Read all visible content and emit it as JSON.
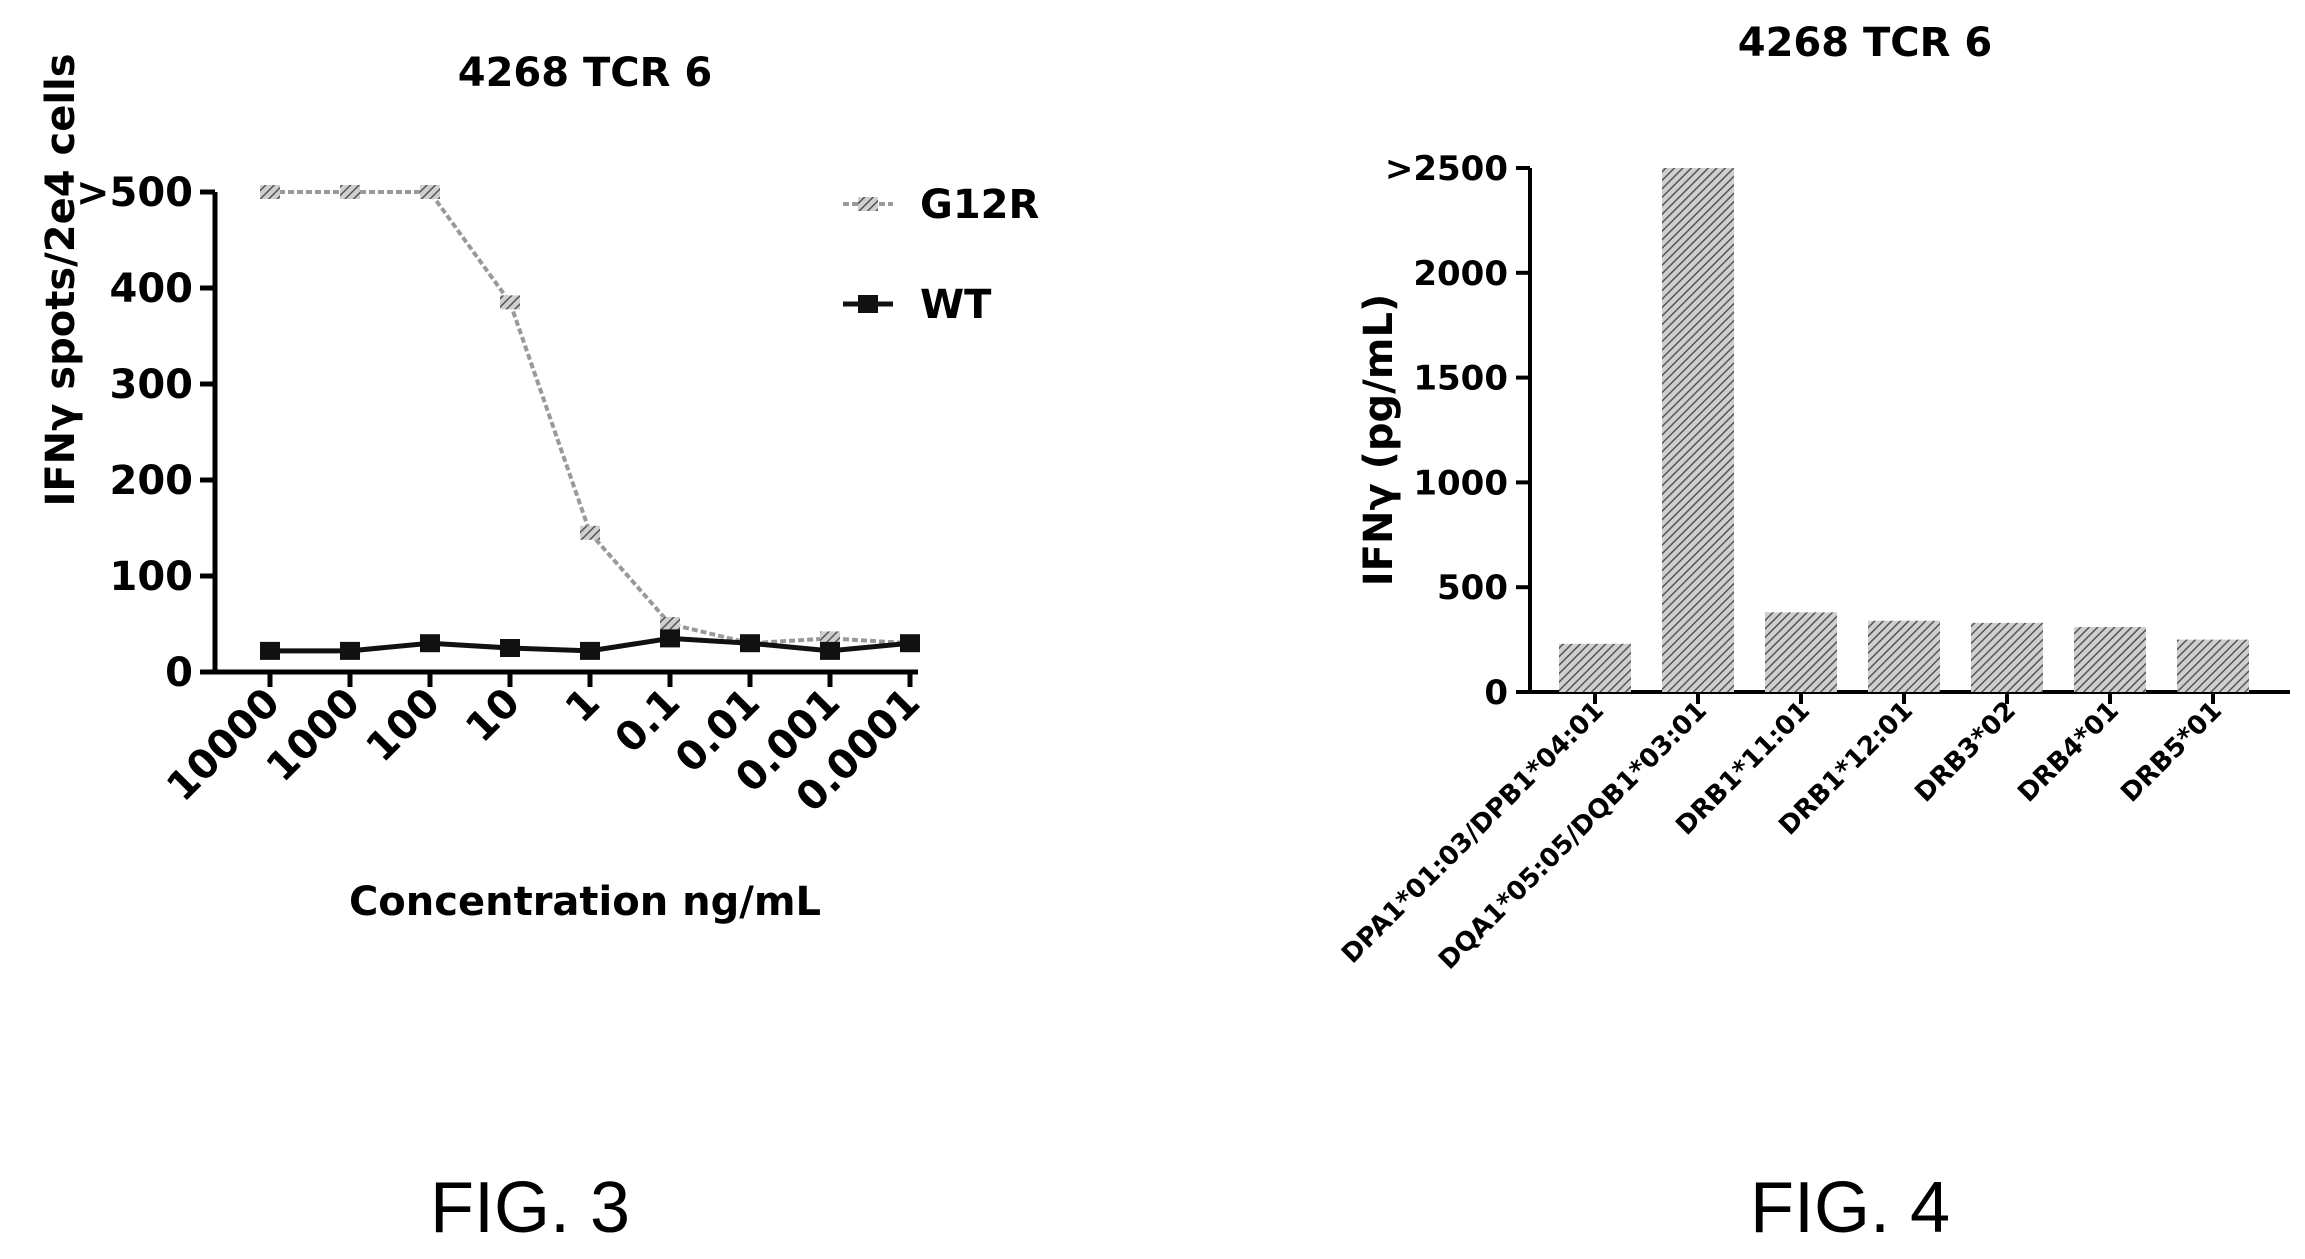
{
  "fig3": {
    "label": "FIG. 3",
    "chart_data": {
      "type": "line",
      "title": "4268 TCR 6",
      "xlabel": "Concentration ng/mL",
      "ylabel": "IFNγ spots/2e4 cells",
      "categories": [
        "10000",
        "1000",
        "100",
        "10",
        "1",
        "0.1",
        "0.01",
        "0.001",
        "0.0001"
      ],
      "yticks": [
        "0",
        "100",
        "200",
        "300",
        "400",
        ">500"
      ],
      "ylim": [
        0,
        500
      ],
      "series": [
        {
          "name": "G12R",
          "color": "#9a9a9a",
          "values": [
            500,
            500,
            500,
            385,
            145,
            50,
            30,
            35,
            30
          ]
        },
        {
          "name": "WT",
          "color": "#111111",
          "values": [
            22,
            22,
            30,
            25,
            22,
            35,
            30,
            22,
            30
          ]
        }
      ],
      "legend": "top-right"
    }
  },
  "fig4": {
    "label": "FIG. 4",
    "chart_data": {
      "type": "bar",
      "title": "4268 TCR 6",
      "xlabel": "",
      "ylabel": "IFNγ (pg/mL)",
      "categories": [
        "DPA1*01:03/DPB1*04:01",
        "DQA1*05:05/DQB1*03:01",
        "DRB1*11:01",
        "DRB1*12:01",
        "DRB3*02",
        "DRB4*01",
        "DRB5*01"
      ],
      "values": [
        230,
        2500,
        380,
        340,
        330,
        310,
        250
      ],
      "yticks": [
        "0",
        "500",
        "1000",
        "1500",
        "2000",
        ">2500"
      ],
      "ylim": [
        0,
        2500
      ],
      "bar_color": "#8c8c8c"
    }
  }
}
